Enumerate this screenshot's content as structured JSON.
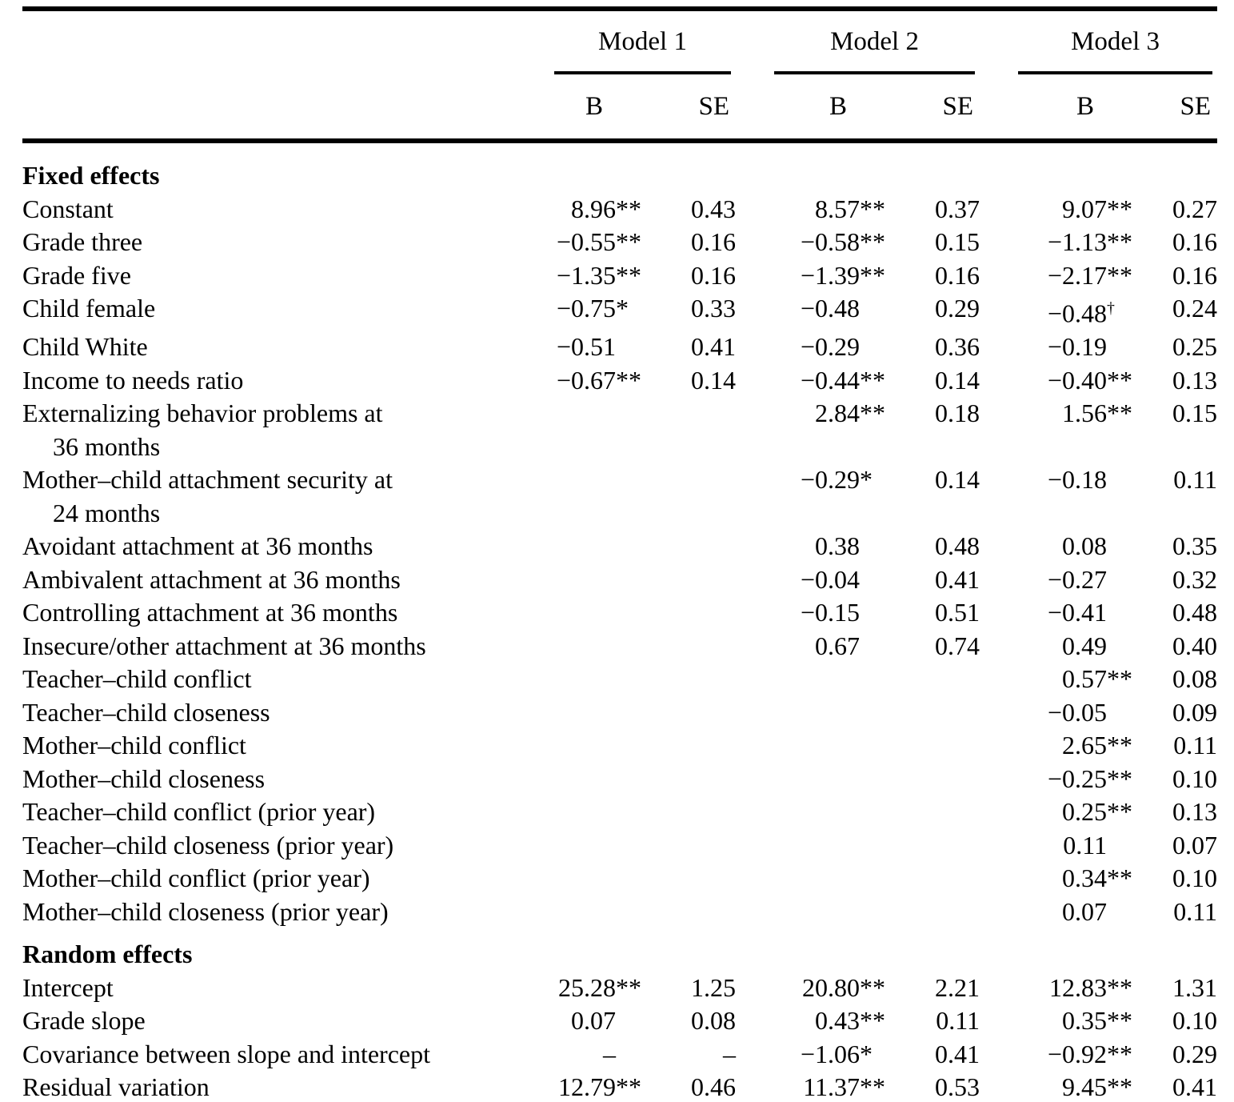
{
  "colors": {
    "text": "#000000",
    "rule": "#000000",
    "background": "#ffffff"
  },
  "table": {
    "col_groups": [
      {
        "label": "Model 1"
      },
      {
        "label": "Model 2"
      },
      {
        "label": "Model 3"
      }
    ],
    "sub_headers": [
      "B",
      "SE",
      "B",
      "SE",
      "B",
      "SE"
    ],
    "rows": [
      {
        "section": true,
        "label": "Fixed effects"
      },
      {
        "label": "Constant",
        "cells": [
          {
            "v": "8.96",
            "m": "**"
          },
          {
            "v": "0.43"
          },
          {
            "v": "8.57",
            "m": "**"
          },
          {
            "v": "0.37"
          },
          {
            "v": "9.07",
            "m": "**"
          },
          {
            "v": "0.27"
          }
        ]
      },
      {
        "label": "Grade three",
        "cells": [
          {
            "v": "−0.55",
            "m": "**"
          },
          {
            "v": "0.16"
          },
          {
            "v": "−0.58",
            "m": "**"
          },
          {
            "v": "0.15"
          },
          {
            "v": "−1.13",
            "m": "**"
          },
          {
            "v": "0.16"
          }
        ]
      },
      {
        "label": "Grade five",
        "cells": [
          {
            "v": "−1.35",
            "m": "**"
          },
          {
            "v": "0.16"
          },
          {
            "v": "−1.39",
            "m": "**"
          },
          {
            "v": "0.16"
          },
          {
            "v": "−2.17",
            "m": "**"
          },
          {
            "v": "0.16"
          }
        ]
      },
      {
        "label": "Child female",
        "cells": [
          {
            "v": "−0.75",
            "m": "*"
          },
          {
            "v": "0.33"
          },
          {
            "v": "−0.48"
          },
          {
            "v": "0.29"
          },
          {
            "v": "−0.48",
            "m": "†"
          },
          {
            "v": "0.24"
          }
        ]
      },
      {
        "label": "Child White",
        "cells": [
          {
            "v": "−0.51"
          },
          {
            "v": "0.41"
          },
          {
            "v": "−0.29"
          },
          {
            "v": "0.36"
          },
          {
            "v": "−0.19"
          },
          {
            "v": "0.25"
          }
        ]
      },
      {
        "label": "Income to needs ratio",
        "cells": [
          {
            "v": "−0.67",
            "m": "**"
          },
          {
            "v": "0.14"
          },
          {
            "v": "−0.44",
            "m": "**"
          },
          {
            "v": "0.14"
          },
          {
            "v": "−0.40",
            "m": "**"
          },
          {
            "v": "0.13"
          }
        ]
      },
      {
        "label": "Externalizing behavior problems at",
        "label2": "36 months",
        "cells": [
          null,
          null,
          {
            "v": "2.84",
            "m": "**"
          },
          {
            "v": "0.18"
          },
          {
            "v": "1.56",
            "m": "**"
          },
          {
            "v": "0.15"
          }
        ]
      },
      {
        "label": "Mother–child attachment security at",
        "label2": "24 months",
        "cells": [
          null,
          null,
          {
            "v": "−0.29",
            "m": "*"
          },
          {
            "v": "0.14"
          },
          {
            "v": "−0.18"
          },
          {
            "v": "0.11"
          }
        ]
      },
      {
        "label": "Avoidant attachment at 36 months",
        "cells": [
          null,
          null,
          {
            "v": "0.38"
          },
          {
            "v": "0.48"
          },
          {
            "v": "0.08"
          },
          {
            "v": "0.35"
          }
        ]
      },
      {
        "label": "Ambivalent attachment at 36 months",
        "cells": [
          null,
          null,
          {
            "v": "−0.04"
          },
          {
            "v": "0.41"
          },
          {
            "v": "−0.27"
          },
          {
            "v": "0.32"
          }
        ]
      },
      {
        "label": "Controlling attachment at 36 months",
        "cells": [
          null,
          null,
          {
            "v": "−0.15"
          },
          {
            "v": "0.51"
          },
          {
            "v": "−0.41"
          },
          {
            "v": "0.48"
          }
        ]
      },
      {
        "label": "Insecure/other attachment at 36 months",
        "cells": [
          null,
          null,
          {
            "v": "0.67"
          },
          {
            "v": "0.74"
          },
          {
            "v": "0.49"
          },
          {
            "v": "0.40"
          }
        ]
      },
      {
        "label": "Teacher–child conflict",
        "cells": [
          null,
          null,
          null,
          null,
          {
            "v": "0.57",
            "m": "**"
          },
          {
            "v": "0.08"
          }
        ]
      },
      {
        "label": "Teacher–child closeness",
        "cells": [
          null,
          null,
          null,
          null,
          {
            "v": "−0.05"
          },
          {
            "v": "0.09"
          }
        ]
      },
      {
        "label": "Mother–child conflict",
        "cells": [
          null,
          null,
          null,
          null,
          {
            "v": "2.65",
            "m": "**"
          },
          {
            "v": "0.11"
          }
        ]
      },
      {
        "label": "Mother–child closeness",
        "cells": [
          null,
          null,
          null,
          null,
          {
            "v": "−0.25",
            "m": "**"
          },
          {
            "v": "0.10"
          }
        ]
      },
      {
        "label": "Teacher–child conflict (prior year)",
        "cells": [
          null,
          null,
          null,
          null,
          {
            "v": "0.25",
            "m": "**"
          },
          {
            "v": "0.13"
          }
        ]
      },
      {
        "label": "Teacher–child closeness (prior year)",
        "cells": [
          null,
          null,
          null,
          null,
          {
            "v": "0.11"
          },
          {
            "v": "0.07"
          }
        ]
      },
      {
        "label": "Mother–child conflict (prior year)",
        "cells": [
          null,
          null,
          null,
          null,
          {
            "v": "0.34",
            "m": "**"
          },
          {
            "v": "0.10"
          }
        ]
      },
      {
        "label": "Mother–child closeness (prior year)",
        "cells": [
          null,
          null,
          null,
          null,
          {
            "v": "0.07"
          },
          {
            "v": "0.11"
          }
        ]
      },
      {
        "section": true,
        "label": "Random effects"
      },
      {
        "label": "Intercept",
        "cells": [
          {
            "v": "25.28",
            "m": "**"
          },
          {
            "v": "1.25"
          },
          {
            "v": "20.80",
            "m": "**"
          },
          {
            "v": "2.21"
          },
          {
            "v": "12.83",
            "m": "**"
          },
          {
            "v": "1.31"
          }
        ]
      },
      {
        "label": "Grade slope",
        "cells": [
          {
            "v": "0.07"
          },
          {
            "v": "0.08"
          },
          {
            "v": "0.43",
            "m": "**"
          },
          {
            "v": "0.11"
          },
          {
            "v": "0.35",
            "m": "**"
          },
          {
            "v": "0.10"
          }
        ]
      },
      {
        "label": "Covariance between slope and intercept",
        "cells": [
          {
            "v": "–"
          },
          {
            "v": "–"
          },
          {
            "v": "−1.06",
            "m": "*"
          },
          {
            "v": "0.41"
          },
          {
            "v": "−0.92",
            "m": "**"
          },
          {
            "v": "0.29"
          }
        ]
      },
      {
        "label": "Residual variation",
        "cells": [
          {
            "v": "12.79",
            "m": "**"
          },
          {
            "v": "0.46"
          },
          {
            "v": "11.37",
            "m": "**"
          },
          {
            "v": "0.53"
          },
          {
            "v": "9.45",
            "m": "**"
          },
          {
            "v": "0.41"
          }
        ]
      }
    ]
  }
}
